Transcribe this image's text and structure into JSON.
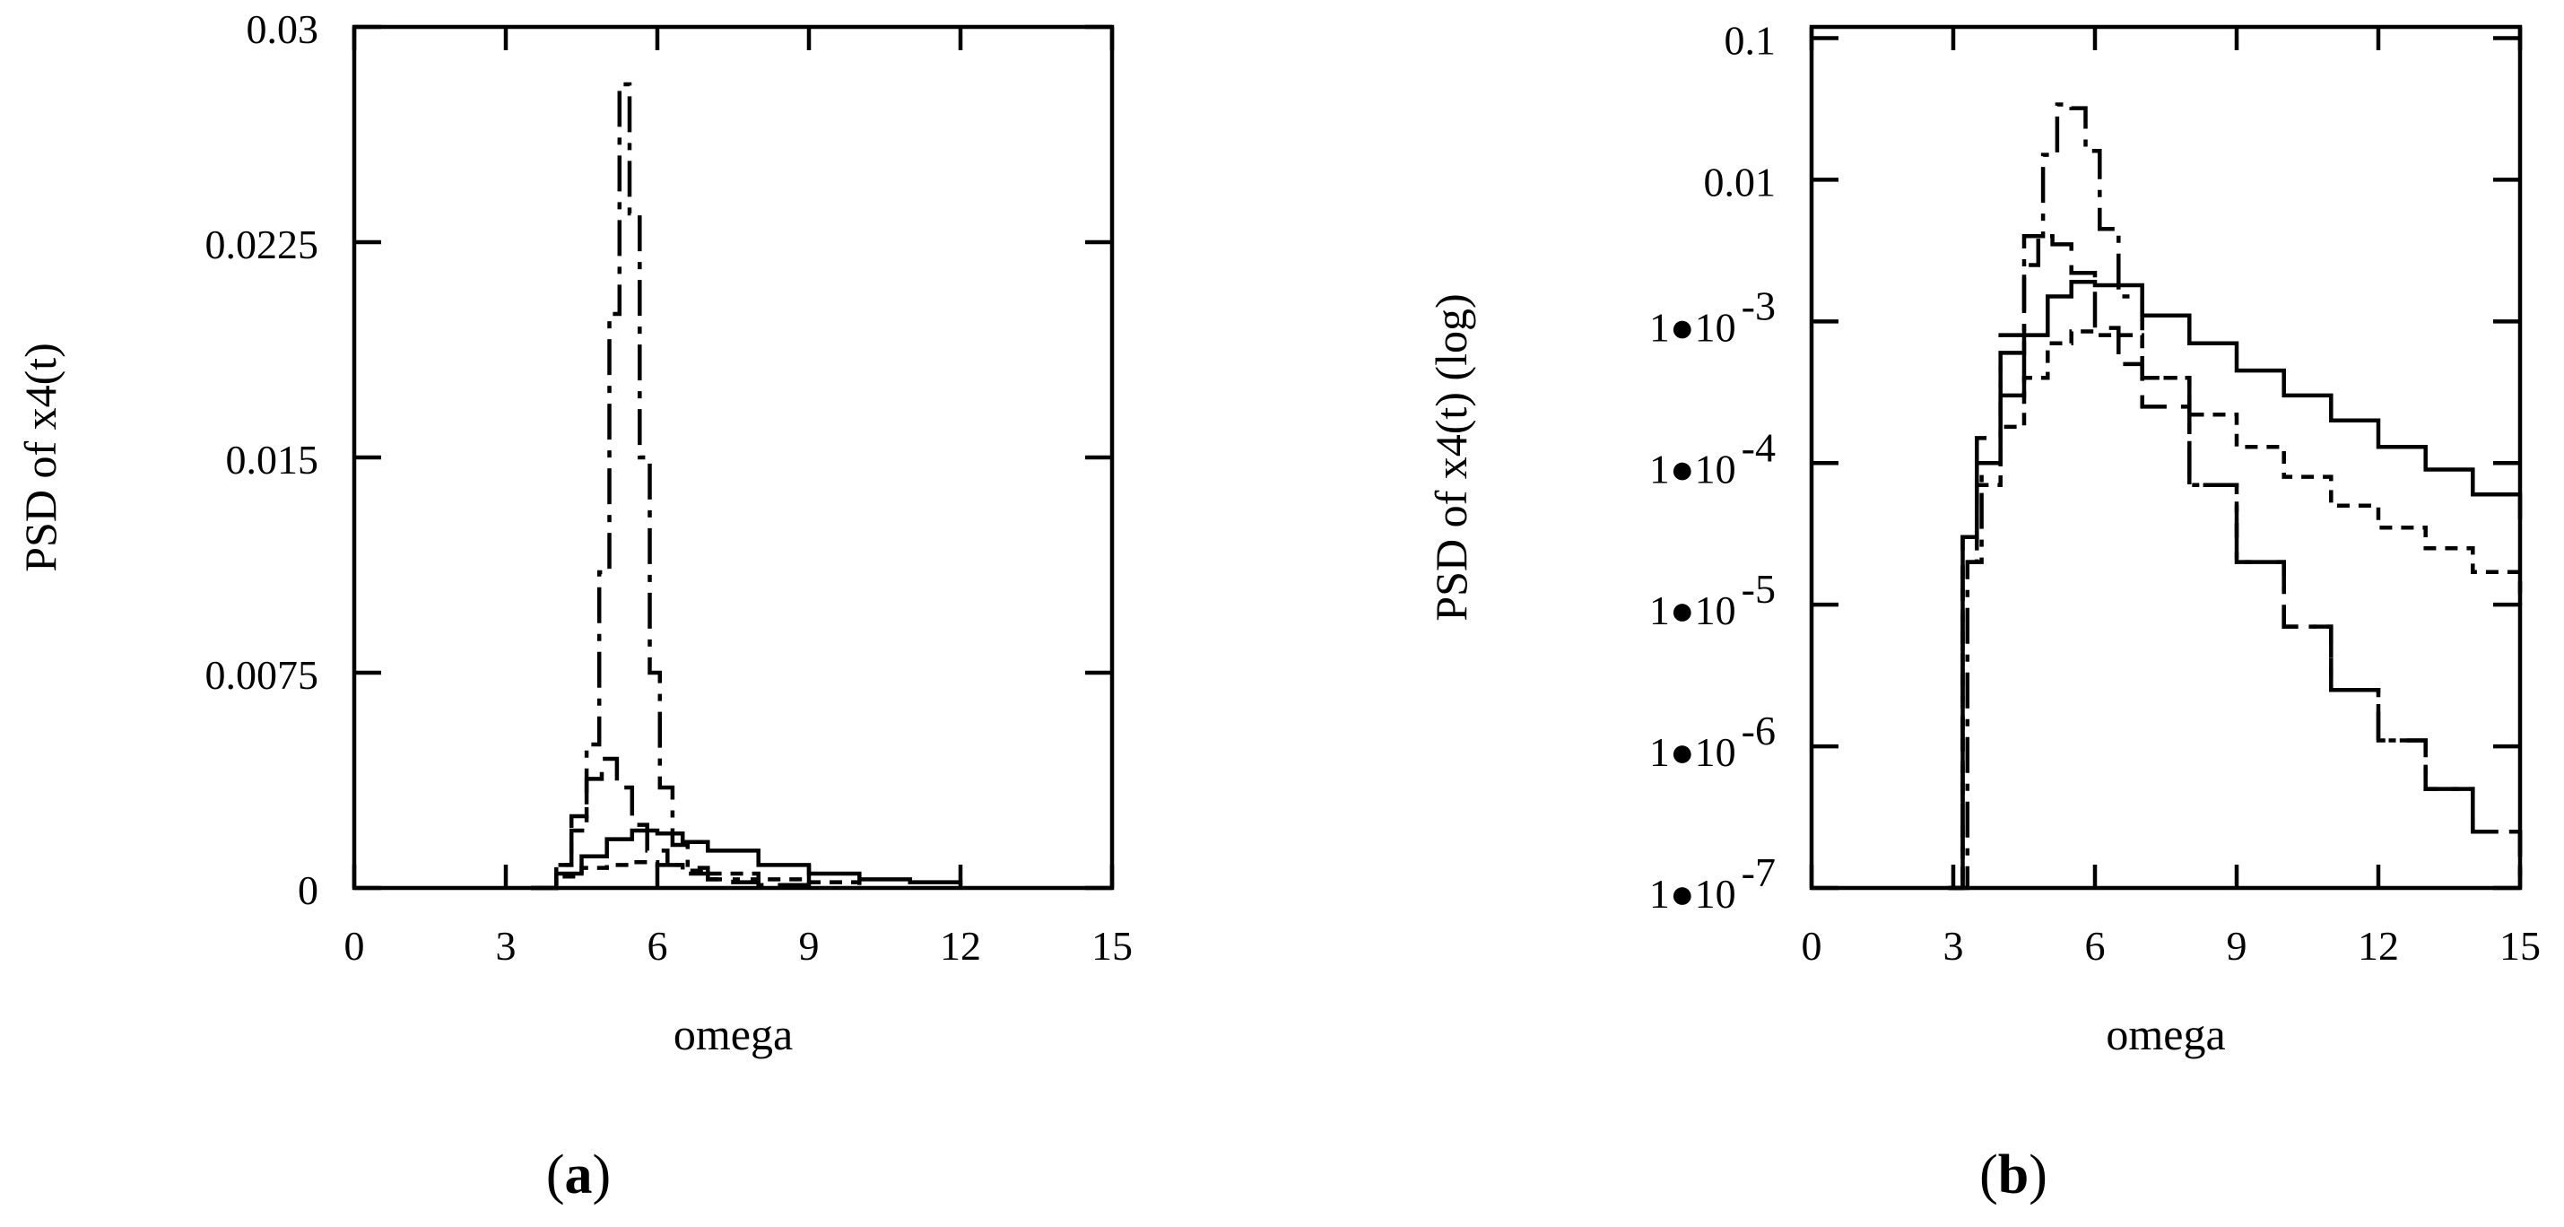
{
  "chart_data": [
    {
      "id": "a",
      "type": "line",
      "panel_label": "a",
      "xlabel": "omega",
      "ylabel": "PSD of x4(t)",
      "xlim": [
        0,
        15
      ],
      "ylim": [
        0,
        0.03
      ],
      "yscale": "linear",
      "xticks": [
        "0",
        "3",
        "6",
        "9",
        "12",
        "15"
      ],
      "yticks": [
        "0",
        "0.0075",
        "0.015",
        "0.0225",
        "0.03"
      ],
      "grid": false,
      "series": [
        {
          "style": "solid",
          "x": [
            3.5,
            4.0,
            4.5,
            5.0,
            5.5,
            6.0,
            6.5,
            7.0,
            8.0,
            9.0,
            10.0,
            11.0,
            12.0
          ],
          "values": [
            0.0,
            0.0005,
            0.0011,
            0.0017,
            0.002,
            0.0019,
            0.0016,
            0.0013,
            0.0008,
            0.0005,
            0.0003,
            0.0002,
            0.0001
          ]
        },
        {
          "style": "short-dash",
          "x": [
            3.5,
            4.0,
            4.5,
            5.0,
            5.5,
            6.0,
            6.5,
            7.0,
            8.0,
            9.0,
            10.0
          ],
          "values": [
            0.0,
            0.0004,
            0.0007,
            0.0008,
            0.0009,
            0.0008,
            0.0006,
            0.0005,
            0.0003,
            0.0002,
            0.0001
          ]
        },
        {
          "style": "dash",
          "x": [
            3.5,
            4.0,
            4.3,
            4.6,
            4.9,
            5.2,
            5.5,
            5.8,
            6.2,
            6.6,
            7.0,
            7.5,
            8.0,
            9.0
          ],
          "values": [
            0.0,
            0.0008,
            0.0025,
            0.0038,
            0.0045,
            0.0035,
            0.0022,
            0.0013,
            0.0008,
            0.0005,
            0.0003,
            0.0002,
            0.0001,
            0.0001
          ]
        },
        {
          "style": "dash-dot",
          "x": [
            3.7,
            4.0,
            4.3,
            4.6,
            4.85,
            5.05,
            5.25,
            5.45,
            5.65,
            5.85,
            6.05,
            6.3,
            6.6,
            7.0,
            8.0
          ],
          "values": [
            0.0,
            0.0008,
            0.002,
            0.005,
            0.011,
            0.02,
            0.028,
            0.0235,
            0.015,
            0.0075,
            0.0035,
            0.0015,
            0.0007,
            0.0003,
            0.0001
          ]
        }
      ]
    },
    {
      "id": "b",
      "type": "line",
      "panel_label": "b",
      "xlabel": "omega",
      "ylabel": "PSD of x4(t) (log)",
      "xlim": [
        0,
        15
      ],
      "ylim": [
        1e-07,
        0.12
      ],
      "yscale": "log",
      "xticks": [
        "0",
        "3",
        "6",
        "9",
        "12",
        "15"
      ],
      "yticks": [
        {
          "value": 0.1,
          "text": "0.1"
        },
        {
          "value": 0.01,
          "text": "0.01"
        },
        {
          "value": 0.001,
          "mantissa": "1",
          "exponent": "-3"
        },
        {
          "value": 0.0001,
          "mantissa": "1",
          "exponent": "-4"
        },
        {
          "value": 1e-05,
          "mantissa": "1",
          "exponent": "-5"
        },
        {
          "value": 1e-06,
          "mantissa": "1",
          "exponent": "-6"
        },
        {
          "value": 1e-07,
          "mantissa": "1",
          "exponent": "-7"
        }
      ],
      "grid": false,
      "series": [
        {
          "style": "solid",
          "x": [
            2.9,
            3.2,
            3.5,
            4.0,
            4.5,
            5.0,
            5.5,
            6.0,
            7.0,
            8.0,
            9.0,
            10.0,
            11.0,
            12.0,
            13.0,
            14.0,
            15.0
          ],
          "values": [
            1e-07,
            3e-05,
            0.0001,
            0.0003,
            0.0008,
            0.0015,
            0.0019,
            0.0018,
            0.0011,
            0.0007,
            0.00045,
            0.0003,
            0.0002,
            0.00013,
            9e-05,
            6e-05,
            4e-05
          ]
        },
        {
          "style": "short-dash",
          "x": [
            2.9,
            3.2,
            3.5,
            4.0,
            4.5,
            5.0,
            5.5,
            6.0,
            7.0,
            8.0,
            9.0,
            10.0,
            11.0,
            12.0,
            13.0,
            14.0,
            15.0
          ],
          "values": [
            1e-07,
            2e-05,
            7e-05,
            0.00018,
            0.0004,
            0.0007,
            0.00085,
            0.0008,
            0.0004,
            0.00022,
            0.00013,
            8e-05,
            5e-05,
            3.5e-05,
            2.5e-05,
            1.7e-05,
            1e-05
          ]
        },
        {
          "style": "dash",
          "x": [
            2.9,
            3.2,
            3.5,
            4.0,
            4.5,
            4.8,
            5.1,
            5.5,
            6.0,
            6.5,
            7.0,
            8.0,
            9.0,
            10.0,
            11.0,
            12.0,
            13.0,
            14.0,
            15.0
          ],
          "values": [
            1e-07,
            3e-05,
            0.00015,
            0.0008,
            0.0025,
            0.004,
            0.0035,
            0.0022,
            0.0009,
            0.0005,
            0.00025,
            7e-05,
            2e-05,
            7e-06,
            2.5e-06,
            1.1e-06,
            5e-07,
            2.5e-07,
            1.2e-07
          ]
        },
        {
          "style": "dash-dot",
          "x": [
            3.0,
            3.3,
            3.6,
            4.0,
            4.5,
            4.9,
            5.2,
            5.5,
            5.8,
            6.1,
            6.5,
            7.0,
            8.0,
            9.0,
            10.0,
            11.0,
            12.0,
            13.0,
            14.0,
            15.0
          ],
          "values": [
            1e-07,
            2e-05,
            0.0001,
            0.0006,
            0.004,
            0.015,
            0.034,
            0.032,
            0.016,
            0.0045,
            0.0015,
            0.0004,
            7e-05,
            2e-05,
            7e-06,
            2.5e-06,
            1.1e-06,
            5e-07,
            2.5e-07,
            1.2e-07
          ]
        }
      ]
    }
  ]
}
